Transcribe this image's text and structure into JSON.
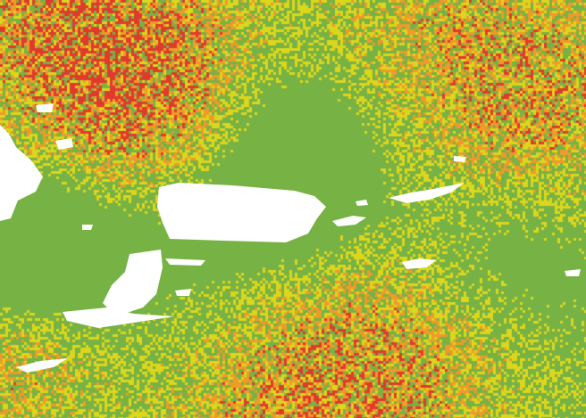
{
  "map": {
    "category_colors": {
      "low": "#77b244",
      "moderate": "#dcd61c",
      "high": "#ef9a2a",
      "very_high": "#e03a2c"
    },
    "land_color": "#ffffff",
    "land_features": [
      "puerto-rico",
      "hispaniola-east",
      "virgin-islands",
      "vieques",
      "st-croix",
      "lesser-antilles",
      "islets"
    ]
  }
}
